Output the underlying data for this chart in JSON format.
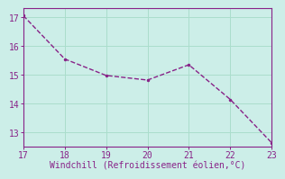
{
  "x": [
    17,
    18,
    19,
    20,
    21,
    22,
    23
  ],
  "y": [
    17.05,
    15.55,
    14.98,
    14.82,
    15.35,
    14.15,
    12.65
  ],
  "line_color": "#882288",
  "marker_color": "#882288",
  "bg_color": "#cceee8",
  "grid_color": "#aaddcc",
  "xlabel": "Windchill (Refroidissement éolien,°C)",
  "xlabel_color": "#882288",
  "tick_color": "#882288",
  "spine_color": "#882288",
  "xlim": [
    17,
    23
  ],
  "ylim": [
    12.5,
    17.3
  ],
  "yticks": [
    13,
    14,
    15,
    16,
    17
  ],
  "xticks": [
    17,
    18,
    19,
    20,
    21,
    22,
    23
  ],
  "fontsize": 7,
  "linewidth": 1.0,
  "markersize": 3
}
